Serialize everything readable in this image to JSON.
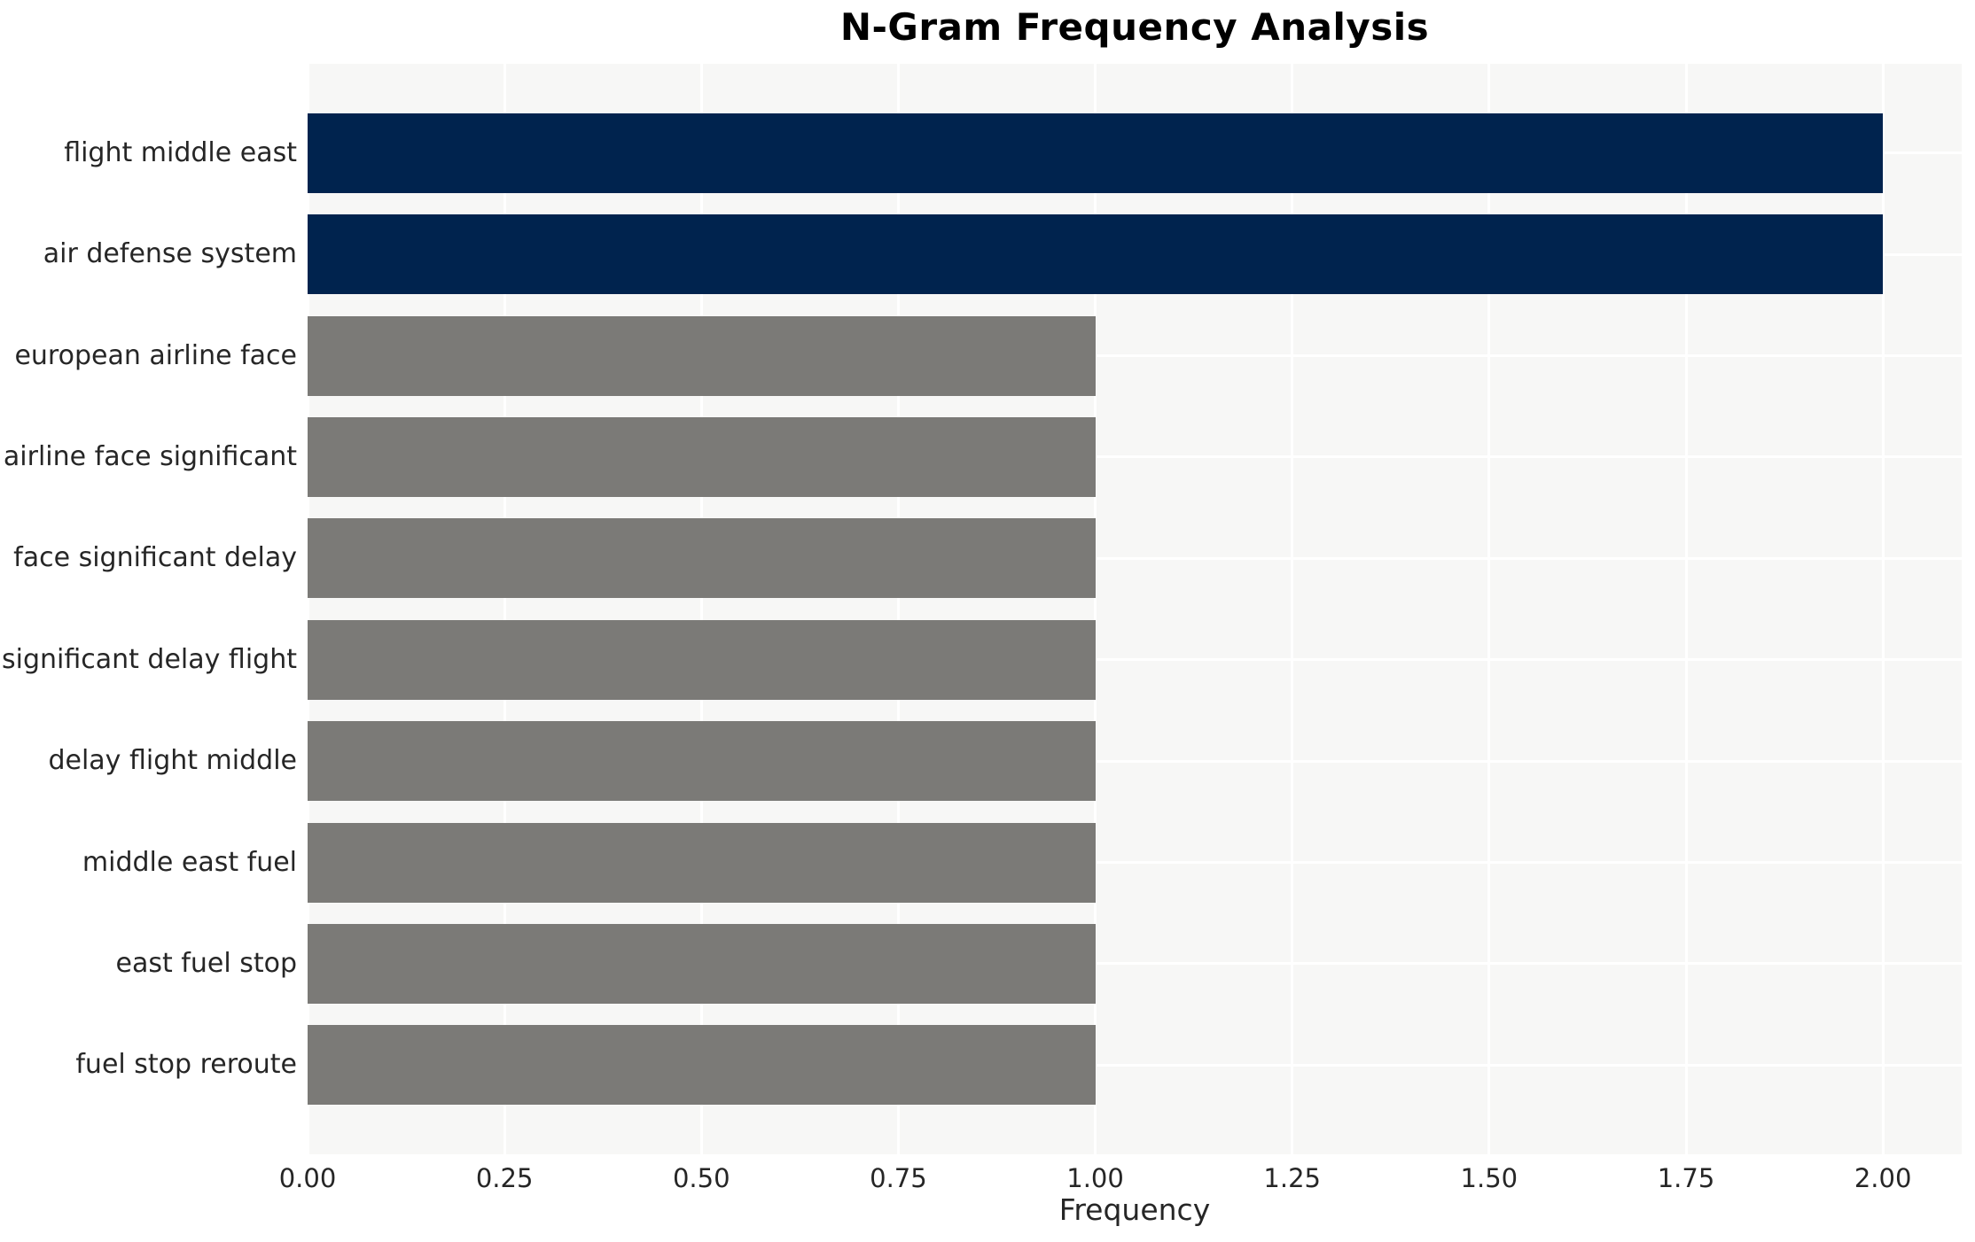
{
  "chart_data": {
    "type": "bar",
    "orientation": "horizontal",
    "title": "N-Gram Frequency Analysis",
    "xlabel": "Frequency",
    "ylabel": "",
    "categories": [
      "flight middle east",
      "air defense system",
      "european airline face",
      "airline face significant",
      "face significant delay",
      "significant delay flight",
      "delay flight middle",
      "middle east fuel",
      "east fuel stop",
      "fuel stop reroute"
    ],
    "values": [
      2,
      2,
      1,
      1,
      1,
      1,
      1,
      1,
      1,
      1
    ],
    "bar_colors": [
      "#00234e",
      "#00234e",
      "#7b7a77",
      "#7b7a77",
      "#7b7a77",
      "#7b7a77",
      "#7b7a77",
      "#7b7a77",
      "#7b7a77",
      "#7b7a77"
    ],
    "xlim": [
      0,
      2.1
    ],
    "xtick_values": [
      0,
      0.25,
      0.5,
      0.75,
      1.0,
      1.25,
      1.5,
      1.75,
      2.0
    ],
    "xtick_labels": [
      "0.00",
      "0.25",
      "0.50",
      "0.75",
      "1.00",
      "1.25",
      "1.50",
      "1.75",
      "2.00"
    ],
    "grid": true,
    "legend": "none",
    "colors": {
      "highlight_bar": "#00234e",
      "default_bar": "#7b7a77",
      "plot_background": "#f7f7f6",
      "figure_background": "#ffffff",
      "gridline": "#ffffff",
      "tick_text": "#262626",
      "title_text": "#000000"
    }
  }
}
